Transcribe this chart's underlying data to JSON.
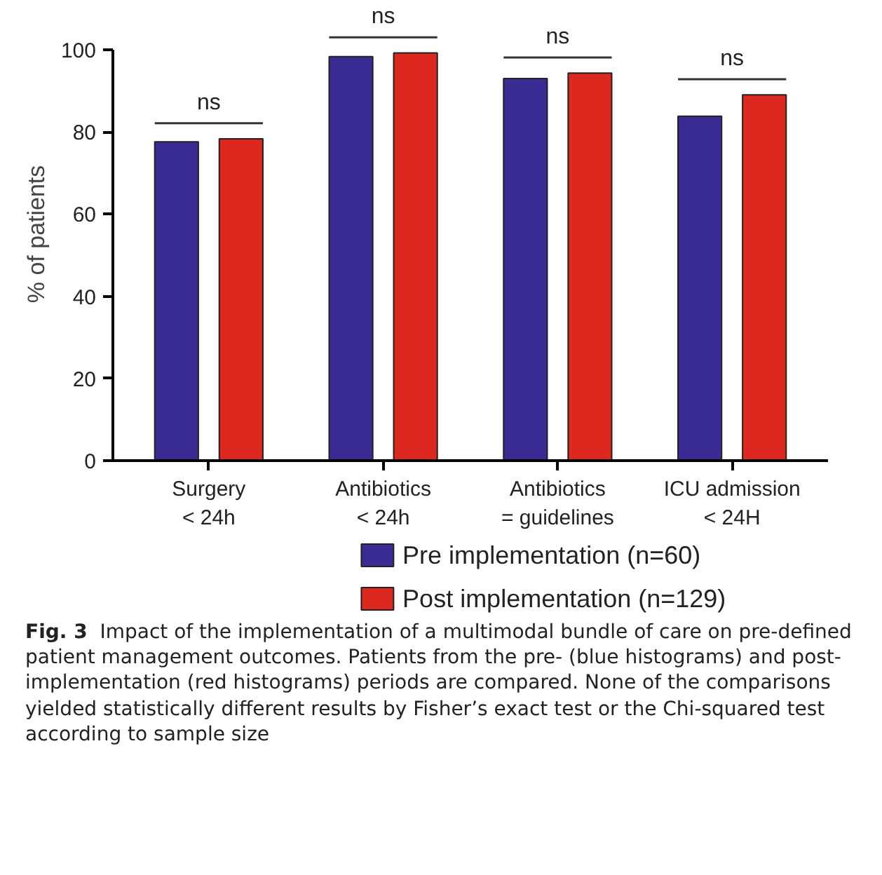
{
  "chart_data": {
    "type": "bar",
    "categories": [
      "Surgery\n< 24h",
      "Antibiotics\n< 24h",
      "Antibiotics\n= guidelines",
      "ICU admission\n< 24H"
    ],
    "series": [
      {
        "name": "Pre implementation (n=60)",
        "color": "#3a2a94",
        "values": [
          77.6,
          98.3,
          93.0,
          83.8
        ]
      },
      {
        "name": "Post implementation (n=129)",
        "color": "#dc281e",
        "values": [
          78.3,
          99.2,
          94.3,
          89.0
        ]
      }
    ],
    "ylabel": "% of patients",
    "ylim": [
      0,
      100
    ],
    "yticks": [
      0,
      20,
      40,
      60,
      80,
      100
    ],
    "grid": false,
    "legend": "bottom",
    "annotations": [
      "ns",
      "ns",
      "ns",
      "ns",
      "Fig. 3",
      "Impact of the implementation of a multimodal bundle of care on pre-defined patient management outcomes. Patients from the pre- (blue histograms) and post-implementation (red histograms) periods are compared. None of the comparisons yielded statistically different results by Fisher’s exact test or the Chi-squared test according to sample size"
    ]
  }
}
